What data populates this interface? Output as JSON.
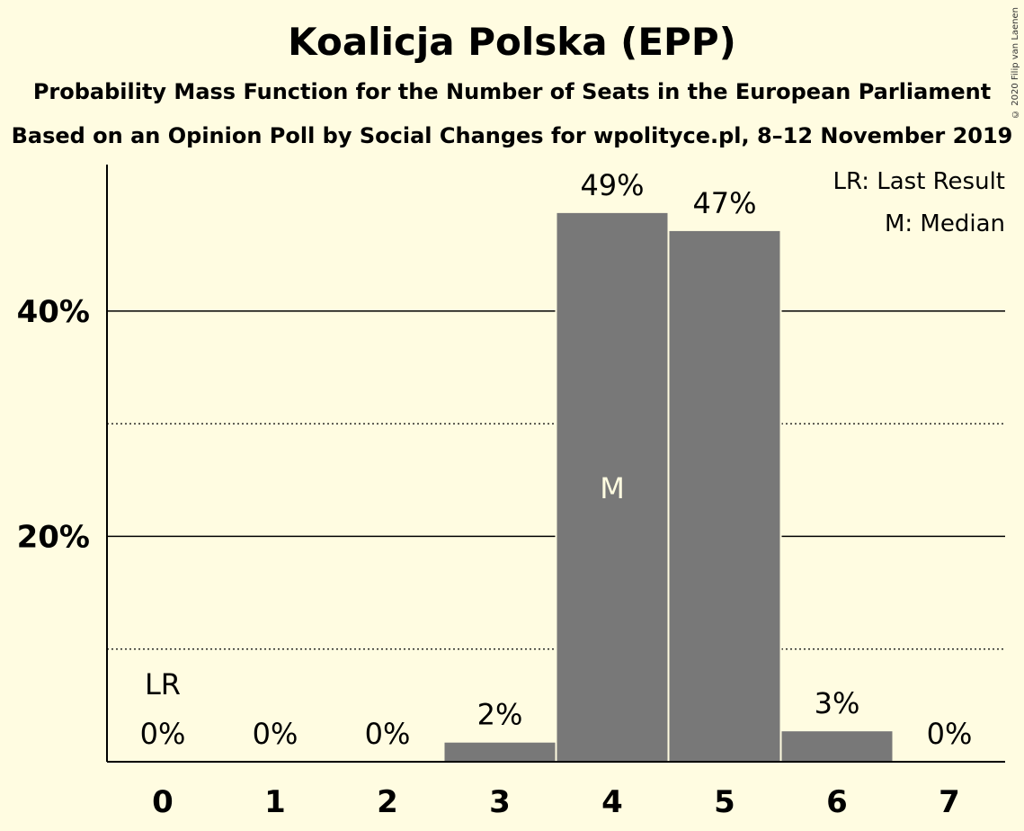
{
  "title": "Koalicja Polska (EPP)",
  "subtitle1": "Probability Mass Function for the Number of Seats in the European Parliament",
  "subtitle2": "Based on an Opinion Poll by Social Changes for wpolityce.pl, 8–12 November 2019",
  "copyright": "© 2020 Filip van Laenen",
  "legend": {
    "last_result": "LR: Last Result",
    "median": "M: Median"
  },
  "colors": {
    "background": "#FFFCE1",
    "bar": "#787878",
    "median_text": "#FFFCE1"
  },
  "chart_data": {
    "type": "bar",
    "title": "Koalicja Polska (EPP)",
    "xlabel": "",
    "ylabel": "",
    "categories": [
      "0",
      "1",
      "2",
      "3",
      "4",
      "5",
      "6",
      "7"
    ],
    "values": [
      0,
      0,
      0,
      1.7,
      48.7,
      47.1,
      2.7,
      0
    ],
    "value_labels": [
      "0%",
      "0%",
      "0%",
      "2%",
      "49%",
      "47%",
      "3%",
      "0%"
    ],
    "ylim": [
      0,
      53
    ],
    "y_ticks": [
      {
        "value": 20,
        "label": "20%"
      },
      {
        "value": 40,
        "label": "40%"
      }
    ],
    "minor_gridlines": [
      10,
      30
    ],
    "last_result_index": 0,
    "last_result_label": "LR",
    "median_index": 4,
    "median_label": "M",
    "legend_position": "top-right",
    "grid": true
  }
}
